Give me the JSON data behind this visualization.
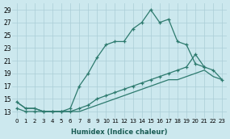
{
  "xlabel": "Humidex (Indice chaleur)",
  "background_color": "#cce8ee",
  "grid_color": "#aacdd6",
  "line_color": "#2d7a6e",
  "xlim": [
    -0.5,
    23.5
  ],
  "ylim": [
    12.0,
    30.0
  ],
  "xticks": [
    0,
    1,
    2,
    3,
    4,
    5,
    6,
    7,
    8,
    9,
    10,
    11,
    12,
    13,
    14,
    15,
    16,
    17,
    18,
    19,
    20,
    21,
    22,
    23
  ],
  "yticks": [
    13,
    15,
    17,
    19,
    21,
    23,
    25,
    27,
    29
  ],
  "curve1_x": [
    0,
    1,
    2,
    3,
    4,
    5,
    6,
    7,
    8,
    9,
    10,
    11,
    12,
    13,
    14,
    15,
    16,
    17,
    18,
    19,
    20,
    21
  ],
  "curve1_y": [
    14.5,
    13.5,
    13.5,
    13.0,
    13.0,
    13.0,
    13.5,
    17.0,
    19.0,
    21.5,
    23.5,
    24.0,
    24.0,
    26.0,
    27.0,
    29.0,
    27.0,
    27.5,
    24.0,
    23.5,
    20.5,
    20.0
  ],
  "curve2_x": [
    0,
    1,
    2,
    3,
    4,
    5,
    6,
    7,
    8,
    9,
    10,
    11,
    12,
    13,
    14,
    15,
    16,
    17,
    18,
    19,
    20,
    21,
    22,
    23
  ],
  "curve2_y": [
    13.5,
    13.0,
    13.0,
    13.0,
    13.0,
    13.0,
    13.0,
    13.5,
    14.0,
    15.0,
    15.5,
    16.0,
    16.5,
    17.0,
    17.5,
    18.0,
    18.5,
    19.0,
    19.5,
    20.0,
    22.0,
    20.0,
    19.5,
    18.0
  ],
  "curve3_x": [
    0,
    1,
    2,
    3,
    4,
    5,
    6,
    7,
    8,
    9,
    10,
    11,
    12,
    13,
    14,
    15,
    16,
    17,
    18,
    19,
    20,
    21,
    22,
    23
  ],
  "curve3_y": [
    14.5,
    13.5,
    13.5,
    13.0,
    13.0,
    13.0,
    13.0,
    13.0,
    13.5,
    14.0,
    14.5,
    15.0,
    15.5,
    16.0,
    16.5,
    17.0,
    17.5,
    18.0,
    18.0,
    18.5,
    19.0,
    19.5,
    18.5,
    18.0
  ]
}
